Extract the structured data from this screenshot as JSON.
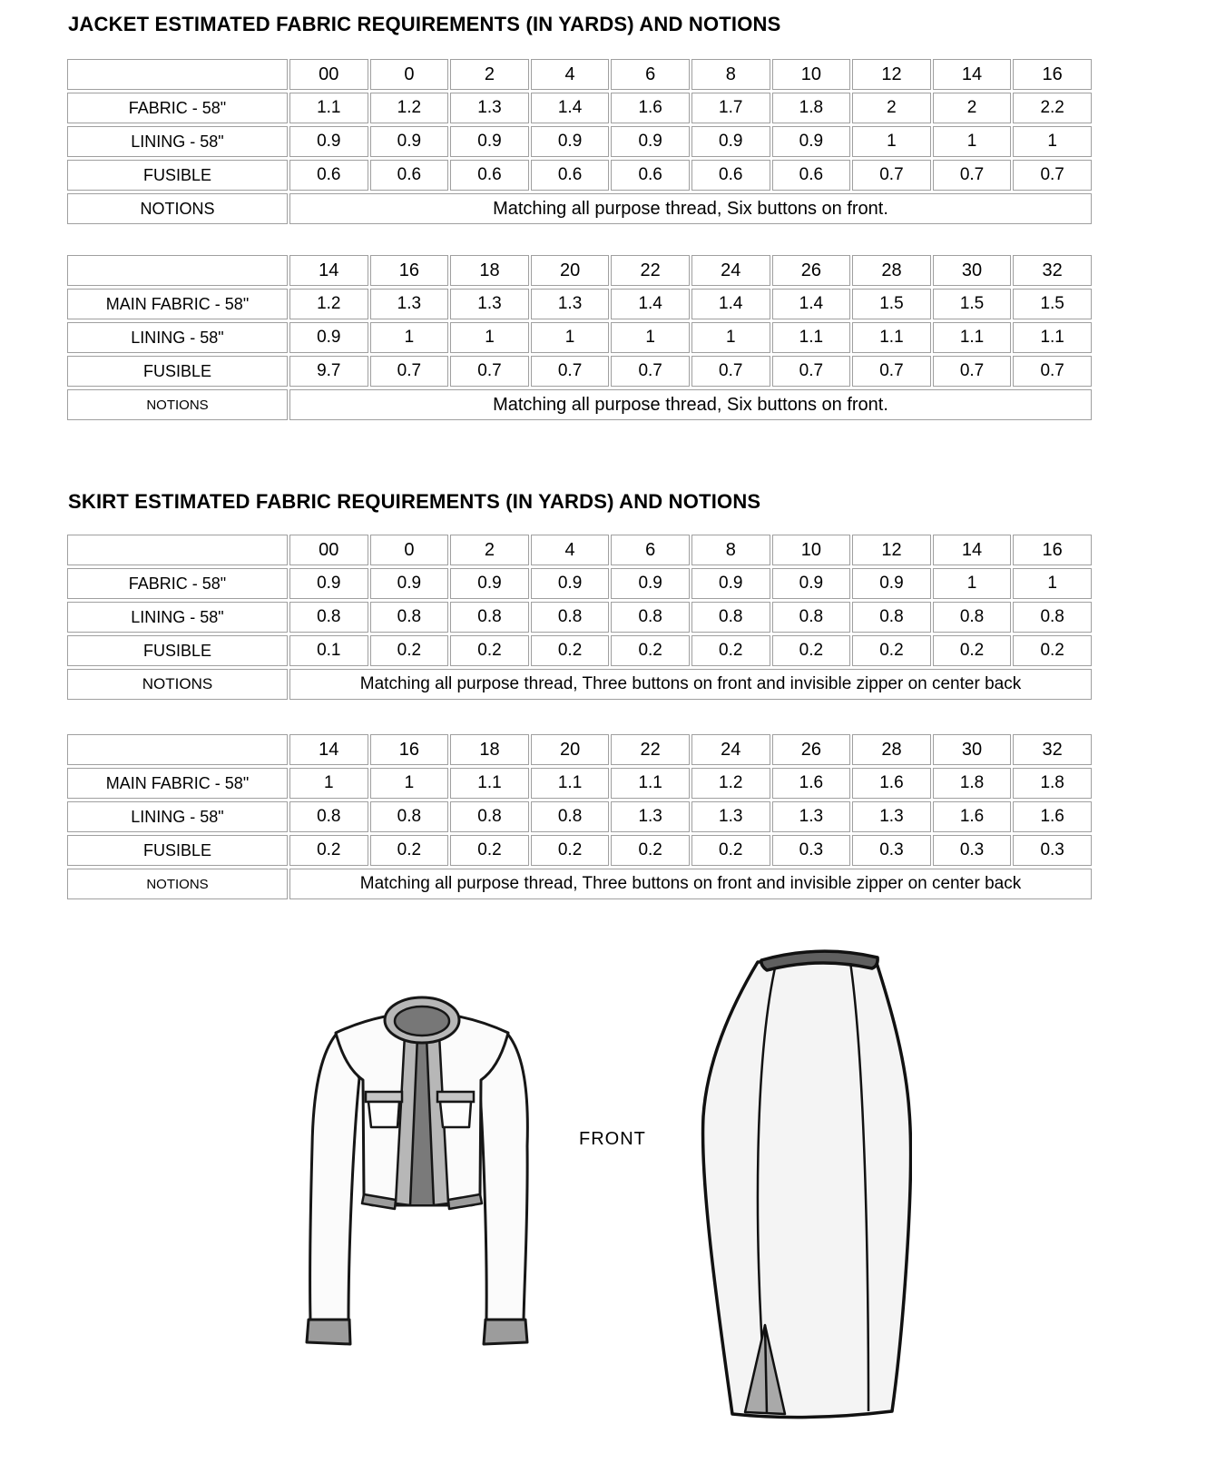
{
  "titles": {
    "jacket": "JACKET ESTIMATED FABRIC REQUIREMENTS (IN YARDS) AND NOTIONS",
    "skirt": "SKIRT ESTIMATED FABRIC REQUIREMENTS (IN YARDS) AND NOTIONS"
  },
  "figures": {
    "front_label": "FRONT"
  },
  "colors": {
    "header_bg": "#e8e8e8",
    "cell_border": "#9f9f9f",
    "trim_gray": "#9c9c9c",
    "waistband_gray": "#5f5f5f"
  },
  "tables": [
    {
      "name": "jacket sizes 00-16",
      "sizes": [
        "00",
        "0",
        "2",
        "4",
        "6",
        "8",
        "10",
        "12",
        "14",
        "16"
      ],
      "rows": [
        {
          "label": "FABRIC - 58\"",
          "values": [
            "1.1",
            "1.2",
            "1.3",
            "1.4",
            "1.6",
            "1.7",
            "1.8",
            "2",
            "2",
            "2.2"
          ]
        },
        {
          "label": "LINING - 58\"",
          "values": [
            "0.9",
            "0.9",
            "0.9",
            "0.9",
            "0.9",
            "0.9",
            "0.9",
            "1",
            "1",
            "1"
          ]
        },
        {
          "label": "FUSIBLE",
          "values": [
            "0.6",
            "0.6",
            "0.6",
            "0.6",
            "0.6",
            "0.6",
            "0.6",
            "0.7",
            "0.7",
            "0.7"
          ]
        }
      ],
      "notions_label": "NOTIONS",
      "notions_text": "Matching all purpose thread, Six buttons on front."
    },
    {
      "name": "jacket sizes 14-32",
      "sizes": [
        "14",
        "16",
        "18",
        "20",
        "22",
        "24",
        "26",
        "28",
        "30",
        "32"
      ],
      "rows": [
        {
          "label": "MAIN FABRIC - 58\"",
          "values": [
            "1.2",
            "1.3",
            "1.3",
            "1.3",
            "1.4",
            "1.4",
            "1.4",
            "1.5",
            "1.5",
            "1.5"
          ]
        },
        {
          "label": "LINING - 58\"",
          "values": [
            "0.9",
            "1",
            "1",
            "1",
            "1",
            "1",
            "1.1",
            "1.1",
            "1.1",
            "1.1"
          ]
        },
        {
          "label": "FUSIBLE",
          "values": [
            "9.7",
            "0.7",
            "0.7",
            "0.7",
            "0.7",
            "0.7",
            "0.7",
            "0.7",
            "0.7",
            "0.7"
          ]
        }
      ],
      "notions_label": "NOTIONS",
      "notions_text": "Matching all purpose thread, Six buttons on front."
    },
    {
      "name": "skirt sizes 00-16",
      "sizes": [
        "00",
        "0",
        "2",
        "4",
        "6",
        "8",
        "10",
        "12",
        "14",
        "16"
      ],
      "rows": [
        {
          "label": "FABRIC - 58\"",
          "values": [
            "0.9",
            "0.9",
            "0.9",
            "0.9",
            "0.9",
            "0.9",
            "0.9",
            "0.9",
            "1",
            "1"
          ]
        },
        {
          "label": "LINING - 58\"",
          "values": [
            "0.8",
            "0.8",
            "0.8",
            "0.8",
            "0.8",
            "0.8",
            "0.8",
            "0.8",
            "0.8",
            "0.8"
          ]
        },
        {
          "label": "FUSIBLE",
          "values": [
            "0.1",
            "0.2",
            "0.2",
            "0.2",
            "0.2",
            "0.2",
            "0.2",
            "0.2",
            "0.2",
            "0.2"
          ]
        }
      ],
      "notions_label": "NOTIONS",
      "notions_text": "Matching all purpose thread, Three buttons on front and invisible zipper on center back"
    },
    {
      "name": "skirt sizes 14-32",
      "sizes": [
        "14",
        "16",
        "18",
        "20",
        "22",
        "24",
        "26",
        "28",
        "30",
        "32"
      ],
      "rows": [
        {
          "label": "MAIN FABRIC - 58\"",
          "values": [
            "1",
            "1",
            "1.1",
            "1.1",
            "1.1",
            "1.2",
            "1.6",
            "1.6",
            "1.8",
            "1.8"
          ]
        },
        {
          "label": "LINING - 58\"",
          "values": [
            "0.8",
            "0.8",
            "0.8",
            "0.8",
            "1.3",
            "1.3",
            "1.3",
            "1.3",
            "1.6",
            "1.6"
          ]
        },
        {
          "label": "FUSIBLE",
          "values": [
            "0.2",
            "0.2",
            "0.2",
            "0.2",
            "0.2",
            "0.2",
            "0.3",
            "0.3",
            "0.3",
            "0.3"
          ]
        }
      ],
      "notions_label": "NOTIONS",
      "notions_text": "Matching all purpose thread, Three buttons on front and invisible zipper on center back"
    }
  ]
}
